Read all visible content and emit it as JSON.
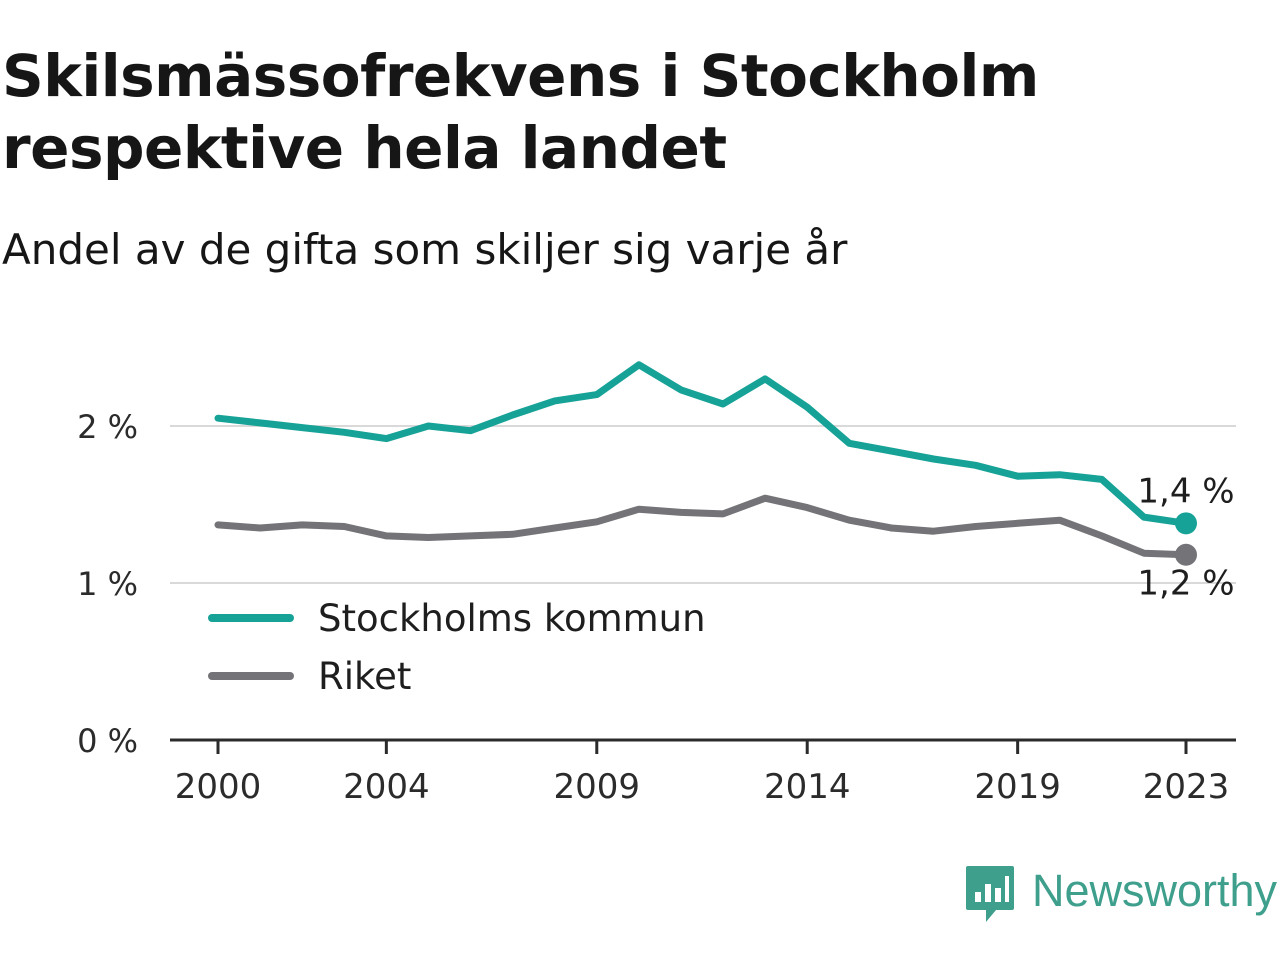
{
  "title": "Skilsmässofrekvens i Stockholm respektive hela landet",
  "subtitle": "Andel av de gifta som skiljer sig varje år",
  "brand": {
    "name": "Newsworthy",
    "logo_icon": "newsworthy-logo-icon",
    "color": "#3f9f8d"
  },
  "chart_data": {
    "type": "line",
    "title": "Skilsmässofrekvens i Stockholm respektive hela landet",
    "subtitle": "Andel av de gifta som skiljer sig varje år",
    "x": [
      2000,
      2001,
      2002,
      2003,
      2004,
      2005,
      2006,
      2007,
      2008,
      2009,
      2010,
      2011,
      2012,
      2013,
      2014,
      2015,
      2016,
      2017,
      2018,
      2019,
      2020,
      2021,
      2022,
      2023
    ],
    "xticks": [
      2000,
      2004,
      2009,
      2014,
      2019,
      2023
    ],
    "xtick_labels": [
      "2000",
      "2004",
      "2009",
      "2014",
      "2019",
      "2023"
    ],
    "xlim": [
      2000,
      2023
    ],
    "ylim": [
      0,
      2.5
    ],
    "yticks": [
      0,
      1,
      2
    ],
    "ytick_labels": [
      "0 %",
      "1 %",
      "2 %"
    ],
    "grid": true,
    "legend_position": "bottom-left",
    "series": [
      {
        "name": "Stockholms kommun",
        "color": "#17a297",
        "values": [
          2.05,
          2.02,
          1.99,
          1.96,
          1.92,
          2.0,
          1.97,
          2.07,
          2.16,
          2.2,
          2.39,
          2.23,
          2.14,
          2.3,
          2.12,
          1.89,
          1.84,
          1.79,
          1.75,
          1.68,
          1.69,
          1.66,
          1.42,
          1.38
        ],
        "end_label": "1,4 %"
      },
      {
        "name": "Riket",
        "color": "#737378",
        "values": [
          1.37,
          1.35,
          1.37,
          1.36,
          1.3,
          1.29,
          1.3,
          1.31,
          1.35,
          1.39,
          1.47,
          1.45,
          1.44,
          1.54,
          1.48,
          1.4,
          1.35,
          1.33,
          1.36,
          1.38,
          1.4,
          1.3,
          1.19,
          1.18
        ],
        "end_label": "1,2 %"
      }
    ]
  }
}
